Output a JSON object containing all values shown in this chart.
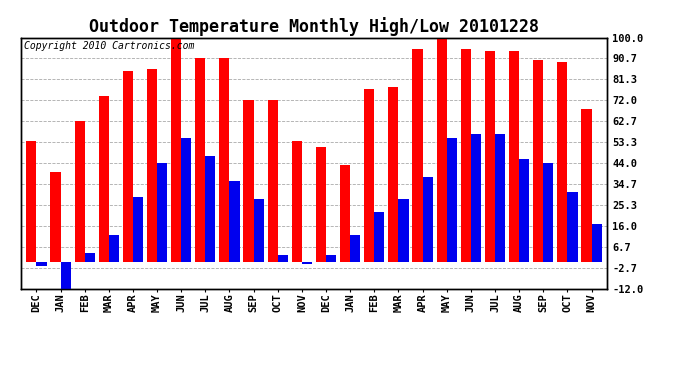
{
  "title": "Outdoor Temperature Monthly High/Low 20101228",
  "copyright": "Copyright 2010 Cartronics.com",
  "months": [
    "DEC",
    "JAN",
    "FEB",
    "MAR",
    "APR",
    "MAY",
    "JUN",
    "JUL",
    "AUG",
    "SEP",
    "OCT",
    "NOV",
    "DEC",
    "JAN",
    "FEB",
    "MAR",
    "APR",
    "MAY",
    "JUN",
    "JUL",
    "AUG",
    "SEP",
    "OCT",
    "NOV"
  ],
  "highs": [
    54.0,
    40.0,
    63.0,
    74.0,
    85.0,
    86.0,
    101.0,
    91.0,
    91.0,
    72.0,
    72.0,
    54.0,
    51.0,
    43.0,
    77.0,
    78.0,
    95.0,
    100.0,
    95.0,
    94.0,
    94.0,
    90.0,
    89.0,
    68.0
  ],
  "lows": [
    -2.0,
    -12.0,
    4.0,
    12.0,
    29.0,
    44.0,
    55.0,
    47.0,
    36.0,
    28.0,
    3.0,
    -1.0,
    3.0,
    12.0,
    22.0,
    28.0,
    38.0,
    55.0,
    57.0,
    57.0,
    46.0,
    44.0,
    31.0,
    17.0
  ],
  "bar_color_high": "#ff0000",
  "bar_color_low": "#0000ee",
  "background_color": "#ffffff",
  "grid_color": "#aaaaaa",
  "yticks": [
    100.0,
    90.7,
    81.3,
    72.0,
    62.7,
    53.3,
    44.0,
    34.7,
    25.3,
    16.0,
    6.7,
    -2.7,
    -12.0
  ],
  "ylim": [
    -12.0,
    100.0
  ],
  "title_fontsize": 12,
  "copyright_fontsize": 7,
  "tick_fontsize": 7.5
}
